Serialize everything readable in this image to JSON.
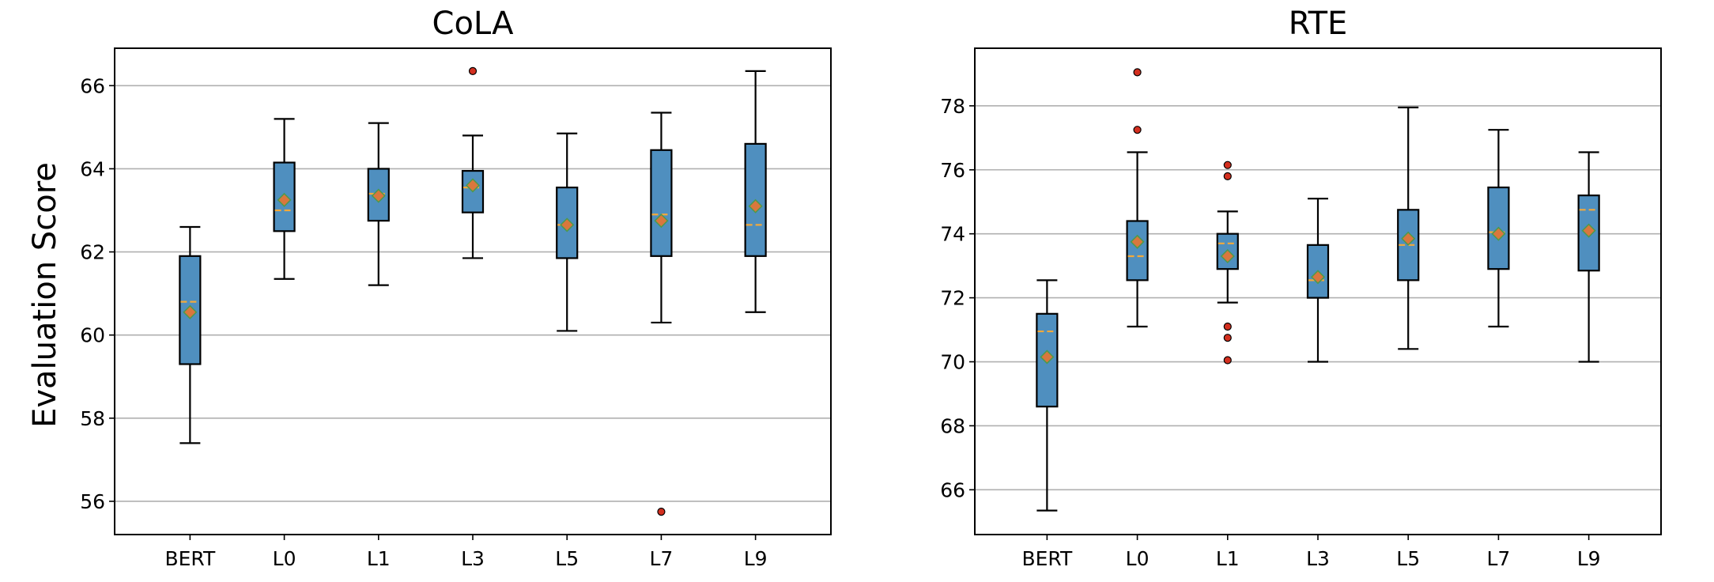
{
  "ylabel": "Evaluation Score",
  "colors": {
    "box_fill": "#4f8fbf",
    "median": "#f2a93b",
    "mean_fill": "#d9773d",
    "mean_edge": "#4c9a4c",
    "flier": "#d32f1f",
    "grid": "#b0b0b0"
  },
  "chart_data": [
    {
      "type": "box",
      "title": "CoLA",
      "ylabel": "Evaluation Score",
      "categories": [
        "BERT",
        "L0",
        "L1",
        "L3",
        "L5",
        "L7",
        "L9"
      ],
      "ylim": [
        55.2,
        66.9
      ],
      "yticks": [
        56,
        58,
        60,
        62,
        64,
        66
      ],
      "grid": "y",
      "boxes": [
        {
          "label": "BERT",
          "whislo": 57.4,
          "q1": 59.3,
          "med": 60.8,
          "q3": 61.9,
          "whishi": 62.6,
          "mean": 60.55,
          "fliers": []
        },
        {
          "label": "L0",
          "whislo": 61.35,
          "q1": 62.5,
          "med": 63.0,
          "q3": 64.15,
          "whishi": 65.2,
          "mean": 63.25,
          "fliers": []
        },
        {
          "label": "L1",
          "whislo": 61.2,
          "q1": 62.75,
          "med": 63.4,
          "q3": 64.0,
          "whishi": 65.1,
          "mean": 63.35,
          "fliers": []
        },
        {
          "label": "L3",
          "whislo": 61.85,
          "q1": 62.95,
          "med": 63.55,
          "q3": 63.95,
          "whishi": 64.8,
          "mean": 63.6,
          "fliers": [
            66.35
          ]
        },
        {
          "label": "L5",
          "whislo": 60.1,
          "q1": 61.85,
          "med": 62.65,
          "q3": 63.55,
          "whishi": 64.85,
          "mean": 62.65,
          "fliers": []
        },
        {
          "label": "L7",
          "whislo": 60.3,
          "q1": 61.9,
          "med": 62.9,
          "q3": 64.45,
          "whishi": 65.35,
          "mean": 62.75,
          "fliers": [
            55.75
          ]
        },
        {
          "label": "L9",
          "whislo": 60.55,
          "q1": 61.9,
          "med": 62.65,
          "q3": 64.6,
          "whishi": 66.35,
          "mean": 63.1,
          "fliers": []
        }
      ]
    },
    {
      "type": "box",
      "title": "RTE",
      "ylabel": "",
      "categories": [
        "BERT",
        "L0",
        "L1",
        "L3",
        "L5",
        "L7",
        "L9"
      ],
      "ylim": [
        64.6,
        79.8
      ],
      "yticks": [
        66,
        68,
        70,
        72,
        74,
        76,
        78
      ],
      "grid": "y",
      "boxes": [
        {
          "label": "BERT",
          "whislo": 65.35,
          "q1": 68.6,
          "med": 70.95,
          "q3": 71.5,
          "whishi": 72.55,
          "mean": 70.15,
          "fliers": []
        },
        {
          "label": "L0",
          "whislo": 71.1,
          "q1": 72.55,
          "med": 73.3,
          "q3": 74.4,
          "whishi": 76.55,
          "mean": 73.75,
          "fliers": [
            77.25,
            79.05
          ]
        },
        {
          "label": "L1",
          "whislo": 71.85,
          "q1": 72.9,
          "med": 73.7,
          "q3": 74.0,
          "whishi": 74.7,
          "mean": 73.3,
          "fliers": [
            76.15,
            75.8,
            71.1,
            70.75,
            70.05
          ]
        },
        {
          "label": "L3",
          "whislo": 70.0,
          "q1": 72.0,
          "med": 72.55,
          "q3": 73.65,
          "whishi": 75.1,
          "mean": 72.65,
          "fliers": []
        },
        {
          "label": "L5",
          "whislo": 70.4,
          "q1": 72.55,
          "med": 73.65,
          "q3": 74.75,
          "whishi": 77.95,
          "mean": 73.85,
          "fliers": []
        },
        {
          "label": "L7",
          "whislo": 71.1,
          "q1": 72.9,
          "med": 74.05,
          "q3": 75.45,
          "whishi": 77.25,
          "mean": 74.0,
          "fliers": []
        },
        {
          "label": "L9",
          "whislo": 70.0,
          "q1": 72.85,
          "med": 74.75,
          "q3": 75.2,
          "whishi": 76.55,
          "mean": 74.1,
          "fliers": []
        }
      ]
    }
  ]
}
